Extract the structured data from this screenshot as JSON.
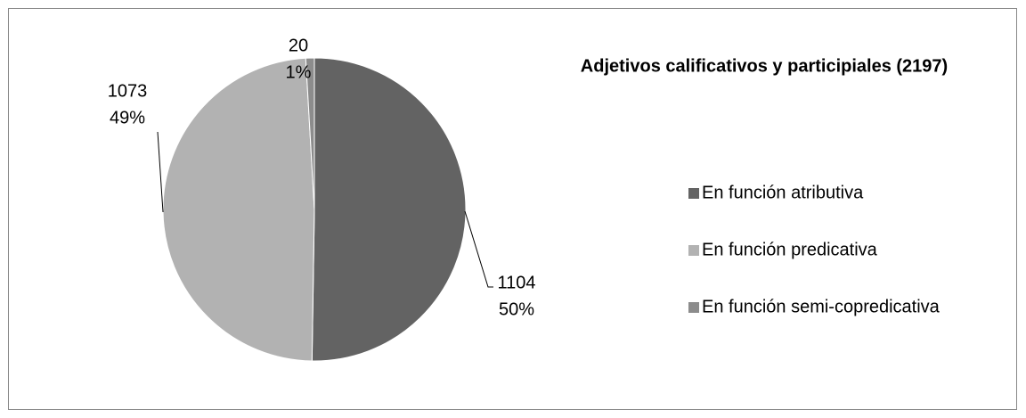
{
  "chart_data": {
    "type": "pie",
    "title": "Adjetivos calificativos y participiales (2197)",
    "categories": [
      "En función atributiva",
      "En función predicativa",
      "En función semi-copredicativa"
    ],
    "values": [
      1104,
      1073,
      20
    ],
    "percents": [
      50,
      49,
      1
    ],
    "percent_labels": [
      "50%",
      "49%",
      "1%"
    ],
    "colors": [
      "#636363",
      "#b2b2b2",
      "#8c8c8c"
    ]
  }
}
